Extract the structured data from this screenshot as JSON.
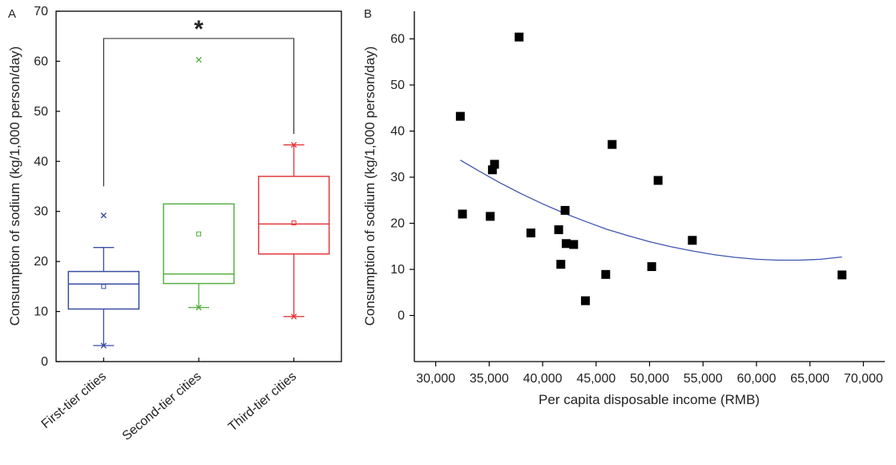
{
  "colors": {
    "first_tier": "#3a4fa0",
    "second_tier": "#58b044",
    "third_tier": "#e5393b",
    "fit_line": "#3e55b0",
    "axis": "#000000"
  },
  "chart_data": [
    {
      "panel": "A",
      "type": "box",
      "ylabel": "Consumption of sodium (kg/1,000 person/day)",
      "ylim": [
        0,
        70
      ],
      "yticks": [
        0,
        10,
        20,
        30,
        40,
        50,
        60,
        70
      ],
      "categories": [
        "First-tier cities",
        "Second-tier cities",
        "Third-tier cities"
      ],
      "boxes": [
        {
          "name": "First-tier cities",
          "color_key": "first_tier",
          "min": 3.2,
          "q1": 10.5,
          "median": 15.5,
          "q3": 18,
          "max": 22.8,
          "mean": 15,
          "extremes": [
            3.2,
            29.2
          ],
          "outliers": []
        },
        {
          "name": "Second-tier cities",
          "color_key": "second_tier",
          "min": 10.8,
          "q1": 15.6,
          "median": 17.5,
          "q3": 31.5,
          "max": 31.5,
          "mean": 25.5,
          "extremes": [
            10.8,
            60.3
          ],
          "outliers": []
        },
        {
          "name": "Third-tier cities",
          "color_key": "third_tier",
          "min": 9,
          "q1": 21.5,
          "median": 27.5,
          "q3": 37,
          "max": 43.3,
          "mean": 27.7,
          "extremes": [
            9,
            43.3
          ],
          "outliers": []
        }
      ],
      "significance": {
        "from": "First-tier cities",
        "to": "Third-tier cities",
        "symbol": "*"
      },
      "grid": false
    },
    {
      "panel": "B",
      "type": "scatter",
      "xlabel": "Per capita disposable income (RMB)",
      "ylabel": "Consumption of sodium (kg/1,000 person/day)",
      "xlim": [
        28000,
        72000
      ],
      "ylim": [
        -10,
        66
      ],
      "xticks": [
        "30,000",
        "35,000",
        "40,000",
        "45,000",
        "50,000",
        "55,000",
        "60,000",
        "65,000",
        "70,000"
      ],
      "yticks": [
        "0",
        "10",
        "20",
        "30",
        "40",
        "50",
        "60"
      ],
      "points": [
        {
          "x": 32300,
          "y": 43.2
        },
        {
          "x": 32500,
          "y": 22
        },
        {
          "x": 35100,
          "y": 21.5
        },
        {
          "x": 35300,
          "y": 31.6
        },
        {
          "x": 35500,
          "y": 32.8
        },
        {
          "x": 37800,
          "y": 60.4
        },
        {
          "x": 38900,
          "y": 17.9
        },
        {
          "x": 41500,
          "y": 18.6
        },
        {
          "x": 41700,
          "y": 11.1
        },
        {
          "x": 42100,
          "y": 22.8
        },
        {
          "x": 42200,
          "y": 15.6
        },
        {
          "x": 42900,
          "y": 15.4
        },
        {
          "x": 44000,
          "y": 3.2
        },
        {
          "x": 45900,
          "y": 8.9
        },
        {
          "x": 46500,
          "y": 37.1
        },
        {
          "x": 50200,
          "y": 10.6
        },
        {
          "x": 50800,
          "y": 29.3
        },
        {
          "x": 54000,
          "y": 16.3
        },
        {
          "x": 68000,
          "y": 8.8
        }
      ],
      "fit": {
        "type": "quadratic",
        "x": [
          32300,
          34000,
          36000,
          38000,
          40000,
          42000,
          44000,
          46000,
          48000,
          50000,
          52000,
          54000,
          56000,
          58000,
          60000,
          62000,
          64000,
          66000,
          68000
        ],
        "y": [
          33.7,
          31.4,
          28.8,
          26.4,
          24.2,
          22.2,
          20.4,
          18.7,
          17.3,
          16.0,
          14.9,
          14.0,
          13.2,
          12.6,
          12.2,
          12.0,
          12.0,
          12.2,
          12.7
        ]
      },
      "grid": false
    }
  ],
  "labels": {
    "panel_a": "A",
    "panel_b": "B"
  }
}
